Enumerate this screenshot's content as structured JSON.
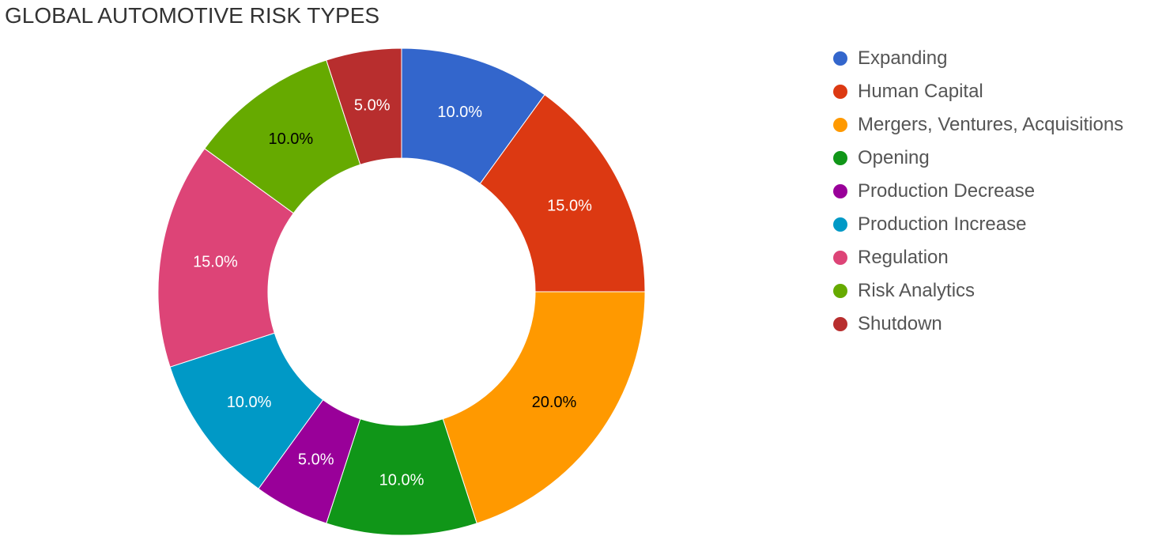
{
  "chart_data": {
    "type": "pie",
    "title": "GLOBAL AUTOMOTIVE RISK TYPES",
    "donut": true,
    "legend_position": "right",
    "categories": [
      "Expanding",
      "Human Capital",
      "Mergers, Ventures, Acquisitions",
      "Opening",
      "Production Decrease",
      "Production Increase",
      "Regulation",
      "Risk Analytics",
      "Shutdown"
    ],
    "values": [
      10.0,
      15.0,
      20.0,
      10.0,
      5.0,
      10.0,
      15.0,
      10.0,
      5.0
    ],
    "labels": [
      "10.0%",
      "15.0%",
      "20.0%",
      "10.0%",
      "5.0%",
      "10.0%",
      "15.0%",
      "10.0%",
      "5.0%"
    ],
    "colors": [
      "#3366cc",
      "#dc3912",
      "#ff9900",
      "#109618",
      "#990099",
      "#0099c6",
      "#dd4477",
      "#66aa00",
      "#b82e2e"
    ],
    "label_colors": [
      "#ffffff",
      "#ffffff",
      "#000000",
      "#ffffff",
      "#ffffff",
      "#ffffff",
      "#ffffff",
      "#000000",
      "#ffffff"
    ]
  }
}
